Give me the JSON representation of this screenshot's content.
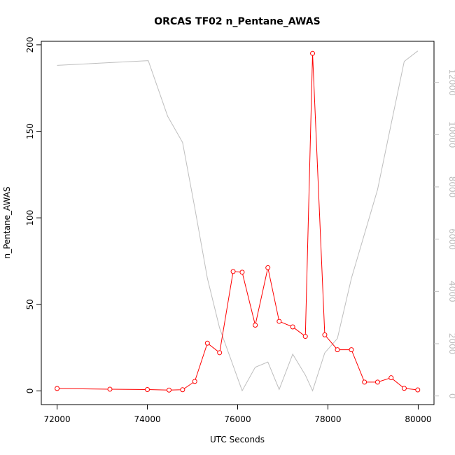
{
  "chart_data": {
    "type": "line",
    "title": "ORCAS TF02 n_Pentane_AWAS",
    "xlabel": "UTC Seconds",
    "ylabel": "n_Pentane_AWAS",
    "xlim": [
      71650,
      80350
    ],
    "ylim": [
      -7.9,
      202
    ],
    "y2lim": [
      -330,
      13570
    ],
    "x_ticks": [
      72000,
      74000,
      76000,
      78000,
      80000
    ],
    "y_ticks": [
      0,
      50,
      100,
      150,
      200
    ],
    "y2_ticks": [
      0,
      2000,
      4000,
      6000,
      8000,
      10000,
      12000
    ],
    "colors": {
      "primary": "#ff0000",
      "secondary": "#bebebe"
    },
    "series": [
      {
        "axis": "left",
        "x": [
          72000,
          73170,
          74000,
          74480,
          74780,
          75050,
          75330,
          75600,
          75900,
          76100,
          76390,
          76670,
          76920,
          77220,
          77500,
          77660,
          77930,
          78210,
          78520,
          78810,
          79100,
          79400,
          79690,
          79990
        ],
        "values": [
          1.4,
          1.0,
          0.8,
          0.5,
          0.7,
          5.5,
          27.6,
          22.1,
          69.0,
          68.6,
          38.0,
          71.2,
          40.2,
          37.0,
          31.5,
          195.0,
          32.4,
          23.8,
          23.8,
          5.1,
          5.1,
          7.6,
          1.5,
          0.6
        ]
      },
      {
        "axis": "right",
        "x": [
          72000,
          74020,
          74450,
          74780,
          75050,
          75330,
          75600,
          76100,
          76390,
          76670,
          76920,
          77220,
          77500,
          77660,
          77930,
          78210,
          78520,
          78810,
          79100,
          79400,
          79690,
          79990
        ],
        "values": [
          12650,
          12830,
          10700,
          9700,
          7200,
          4500,
          2600,
          200,
          1100,
          1300,
          250,
          1600,
          800,
          200,
          1650,
          2200,
          4500,
          6200,
          7900,
          10400,
          12800,
          13200
        ]
      }
    ]
  }
}
